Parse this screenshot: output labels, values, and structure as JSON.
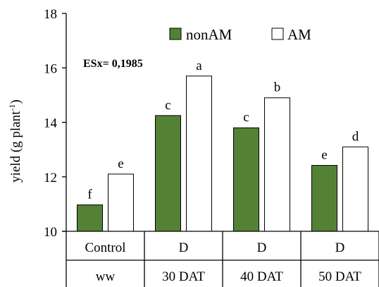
{
  "chart_data": {
    "type": "bar",
    "categories": [
      "Control",
      "D",
      "D",
      "D"
    ],
    "category_sublabels": [
      "ww",
      "30 DAT",
      "40 DAT",
      "50 DAT"
    ],
    "series": [
      {
        "name": "nonAM",
        "color": "#548235",
        "values": [
          10.97,
          14.25,
          13.8,
          12.42
        ],
        "labels": [
          "f",
          "c",
          "c",
          "e"
        ]
      },
      {
        "name": "AM",
        "color": "#ffffff",
        "values": [
          12.1,
          15.7,
          14.9,
          13.1
        ],
        "labels": [
          "e",
          "a",
          "b",
          "d"
        ]
      }
    ],
    "title": "",
    "xlabel": "",
    "ylabel": "yield (g plant",
    "ylabel_superscript": "-1",
    "ylabel_suffix": ")",
    "ylim": [
      10,
      18
    ],
    "yticks": [
      10,
      12,
      14,
      16,
      18
    ],
    "grid": false,
    "legend_position": "top-right",
    "annotation": "ESx= 0,1985"
  }
}
